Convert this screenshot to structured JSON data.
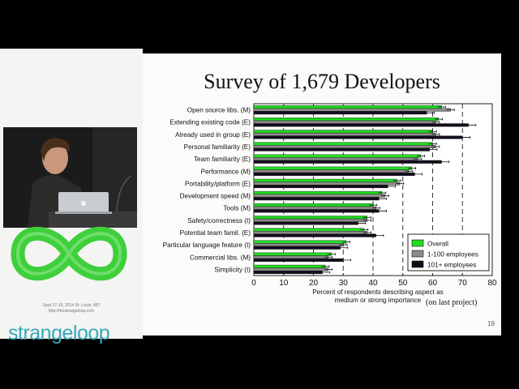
{
  "slide": {
    "title": "Survey of 1,679 Developers",
    "number": "19",
    "annotation": "(on last project)"
  },
  "event": {
    "logo_text": "strangeloop",
    "dates_location": "Sept 17-19, 2014    St. Louis, MO",
    "url": "http://thestrangeloop.com"
  },
  "laptop": {
    "logo": "apple-logo"
  },
  "colors": {
    "overall": "#22dd22",
    "small": "#8a8a8a",
    "large": "#140c1c",
    "logo_green": "#3ecf3a",
    "logo_teal": "#35a9b8"
  },
  "chart_data": {
    "type": "bar",
    "orientation": "horizontal",
    "title": "",
    "xlabel": "Percent of respondents describing aspect as medium or strong importance",
    "ylabel": "",
    "xlim": [
      0,
      80
    ],
    "xticks": [
      0,
      10,
      20,
      30,
      40,
      50,
      60,
      70,
      80
    ],
    "grid": "vertical dashed",
    "legend_position": "bottom-right",
    "categories": [
      "Open source libs. (M)",
      "Extending existing code (E)",
      "Already used in group (E)",
      "Personal familiarity (E)",
      "Team familiarity (E)",
      "Performance (M)",
      "Portability/platform (E)",
      "Development speed (M)",
      "Tools (M)",
      "Safety/correctness (I)",
      "Potential team famil. (E)",
      "Particular language feature (I)",
      "Commercial libs. (M)",
      "Simplicity (I)"
    ],
    "series": [
      {
        "name": "Overall",
        "values": [
          63,
          62,
          60,
          60,
          56,
          53,
          48,
          43,
          40,
          38,
          37,
          31,
          26,
          24
        ]
      },
      {
        "name": "1-100 employees",
        "values": [
          66,
          61,
          61,
          61,
          55,
          52,
          49,
          44,
          41,
          38,
          38,
          30,
          25,
          25
        ]
      },
      {
        "name": "101+ employees",
        "values": [
          58,
          72,
          70,
          59,
          63,
          54,
          45,
          42,
          42,
          35,
          41,
          29,
          30,
          23
        ]
      }
    ]
  }
}
